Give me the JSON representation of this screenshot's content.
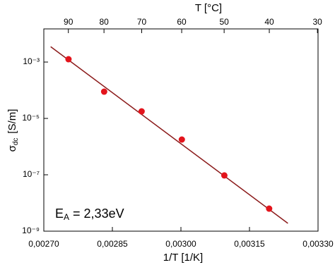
{
  "chart_data": {
    "type": "scatter",
    "xlabel": "1/T  [1/K]",
    "ylabel": {
      "symbol": "σ",
      "subscript": "dc",
      "unit": "[S/m]"
    },
    "x2label": "T  [°C]",
    "annotation": {
      "symbol": "E",
      "subscript": "A",
      "text": " = 2,33eV"
    },
    "points": {
      "color": "#e3141c",
      "x": [
        0.002754,
        0.002832,
        0.002914,
        0.003002,
        0.003095,
        0.003193
      ],
      "values": [
        0.00126,
        8.9e-05,
        1.78e-05,
        1.78e-06,
        9.5e-08,
        6.3e-09
      ]
    },
    "fit": {
      "color": "#8b1a1a",
      "x": [
        0.002715,
        0.003234
      ],
      "values": [
        0.0035,
        1.9e-09
      ]
    },
    "xlim": [
      0.0027,
      0.0033
    ],
    "xticks": [
      {
        "value": 0.0027,
        "label": "0,00270"
      },
      {
        "value": 0.00285,
        "label": "0,00285"
      },
      {
        "value": 0.003,
        "label": "0,00300"
      },
      {
        "value": 0.00315,
        "label": "0,00315"
      },
      {
        "value": 0.0033,
        "label": "0,00330"
      }
    ],
    "x2ticks": [
      90,
      80,
      70,
      60,
      50,
      40,
      30
    ],
    "ylim": [
      1e-09,
      0.015
    ],
    "ylog": true,
    "yticks": [
      {
        "value": 0.001,
        "label": "10⁻³"
      },
      {
        "value": 1e-05,
        "label": "10⁻⁵"
      },
      {
        "value": 1e-07,
        "label": "10⁻⁷"
      },
      {
        "value": 1e-09,
        "label": "10⁻⁹"
      }
    ]
  }
}
